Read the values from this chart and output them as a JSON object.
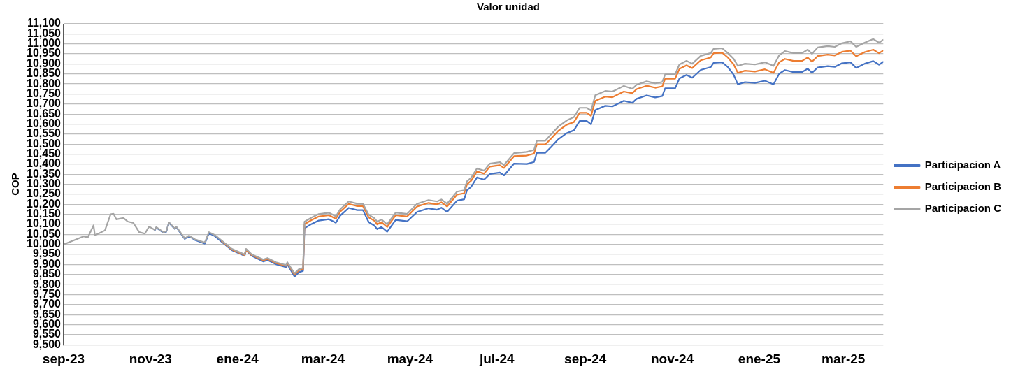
{
  "chart_data": {
    "type": "line",
    "title": "Valor unidad",
    "ylabel": "COP",
    "x": [
      "2023-09-01",
      "2023-09-15",
      "2023-09-18",
      "2023-09-22",
      "2023-09-23",
      "2023-09-30",
      "2023-10-04",
      "2023-10-06",
      "2023-10-08",
      "2023-10-13",
      "2023-10-16",
      "2023-10-20",
      "2023-10-24",
      "2023-10-28",
      "2023-10-31",
      "2023-11-04",
      "2023-11-05",
      "2023-11-10",
      "2023-11-12",
      "2023-11-14",
      "2023-11-18",
      "2023-11-19",
      "2023-11-25",
      "2023-11-28",
      "2023-12-02",
      "2023-12-09",
      "2023-12-12",
      "2023-12-16",
      "2023-12-21",
      "2023-12-28",
      "2024-01-06",
      "2024-01-07",
      "2024-01-11",
      "2024-01-19",
      "2024-01-22",
      "2024-01-28",
      "2024-02-04",
      "2024-02-05",
      "2024-02-10",
      "2024-02-13",
      "2024-02-16",
      "2024-02-17",
      "2024-02-22",
      "2024-02-27",
      "2024-03-05",
      "2024-03-10",
      "2024-03-13",
      "2024-03-19",
      "2024-03-25",
      "2024-03-29",
      "2024-04-02",
      "2024-04-06",
      "2024-04-08",
      "2024-04-11",
      "2024-04-15",
      "2024-04-21",
      "2024-04-29",
      "2024-05-06",
      "2024-05-14",
      "2024-05-20",
      "2024-05-23",
      "2024-05-27",
      "2024-06-03",
      "2024-06-08",
      "2024-06-10",
      "2024-06-13",
      "2024-06-17",
      "2024-06-22",
      "2024-06-26",
      "2024-07-03",
      "2024-07-06",
      "2024-07-13",
      "2024-07-22",
      "2024-07-27",
      "2024-07-29",
      "2024-08-04",
      "2024-08-08",
      "2024-08-13",
      "2024-08-19",
      "2024-08-24",
      "2024-08-28",
      "2024-09-02",
      "2024-09-05",
      "2024-09-08",
      "2024-09-15",
      "2024-09-20",
      "2024-09-28",
      "2024-10-04",
      "2024-10-07",
      "2024-10-14",
      "2024-10-20",
      "2024-10-25",
      "2024-10-27",
      "2024-11-03",
      "2024-11-06",
      "2024-11-11",
      "2024-11-15",
      "2024-11-21",
      "2024-11-28",
      "2024-11-30",
      "2024-12-06",
      "2024-12-10",
      "2024-12-14",
      "2024-12-17",
      "2024-12-22",
      "2024-12-29",
      "2025-01-05",
      "2025-01-11",
      "2025-01-15",
      "2025-01-19",
      "2025-01-25",
      "2025-01-31",
      "2025-02-04",
      "2025-02-07",
      "2025-02-11",
      "2025-02-18",
      "2025-02-23",
      "2025-02-28",
      "2025-03-06",
      "2025-03-10",
      "2025-03-16",
      "2025-03-22",
      "2025-03-26",
      "2025-03-29"
    ],
    "series": [
      {
        "name": "Participacion A",
        "color": "#4472c4",
        "values": [
          null,
          null,
          null,
          null,
          null,
          null,
          null,
          null,
          null,
          null,
          null,
          null,
          null,
          null,
          null,
          10070,
          10084,
          10059,
          10063,
          10108,
          10077,
          10087,
          10027,
          10041,
          10023,
          10004,
          10056,
          10042,
          10012,
          9971,
          9943,
          9971,
          9943,
          9915,
          9922,
          9901,
          9887,
          9901,
          9840,
          9861,
          9868,
          10081,
          10102,
          10119,
          10126,
          10108,
          10143,
          10182,
          10171,
          10171,
          10111,
          10094,
          10076,
          10087,
          10063,
          10122,
          10115,
          10162,
          10180,
          10173,
          10183,
          10162,
          10218,
          10225,
          10270,
          10288,
          10334,
          10323,
          10351,
          10358,
          10344,
          10403,
          10401,
          10411,
          10457,
          10457,
          10486,
          10524,
          10555,
          10569,
          10615,
          10615,
          10599,
          10670,
          10691,
          10688,
          10716,
          10706,
          10726,
          10743,
          10733,
          10740,
          10778,
          10778,
          10827,
          10845,
          10831,
          10870,
          10884,
          10905,
          10908,
          10884,
          10846,
          10798,
          10809,
          10805,
          10816,
          10798,
          10851,
          10869,
          10859,
          10859,
          10876,
          10855,
          10882,
          10889,
          10885,
          10903,
          10908,
          10880,
          10901,
          10914,
          10896,
          10910
        ]
      },
      {
        "name": "Participacion B",
        "color": "#ed7d31",
        "values": [
          null,
          null,
          null,
          null,
          null,
          null,
          null,
          null,
          null,
          null,
          null,
          null,
          null,
          null,
          null,
          null,
          null,
          null,
          null,
          null,
          null,
          null,
          null,
          null,
          null,
          null,
          null,
          null,
          10016,
          9975,
          9947,
          9975,
          9947,
          9921,
          9928,
          9907,
          9893,
          9907,
          9849,
          9870,
          9877,
          10101,
          10122,
          10139,
          10146,
          10128,
          10163,
          10202,
          10191,
          10191,
          10135,
          10118,
          10100,
          10111,
          10087,
          10146,
          10139,
          10189,
          10207,
          10200,
          10210,
          10189,
          10248,
          10255,
          10300,
          10318,
          10364,
          10353,
          10388,
          10395,
          10381,
          10440,
          10443,
          10453,
          10499,
          10499,
          10528,
          10566,
          10597,
          10610,
          10656,
          10656,
          10641,
          10716,
          10737,
          10734,
          10762,
          10754,
          10774,
          10791,
          10781,
          10788,
          10826,
          10826,
          10875,
          10893,
          10879,
          10918,
          10932,
          10953,
          10956,
          10932,
          10898,
          10855,
          10866,
          10862,
          10873,
          10855,
          10908,
          10925,
          10915,
          10915,
          10932,
          10911,
          10939,
          10946,
          10942,
          10960,
          10966,
          10938,
          10959,
          10971,
          10953,
          10967
        ]
      },
      {
        "name": "Participacion C",
        "color": "#a5a5a5",
        "values": [
          10000,
          10040,
          10035,
          10095,
          10045,
          10070,
          10150,
          10153,
          10125,
          10132,
          10114,
          10107,
          10061,
          10054,
          10089,
          10072,
          10086,
          10061,
          10065,
          10110,
          10079,
          10089,
          10030,
          10044,
          10026,
          10009,
          10061,
          10047,
          10019,
          9978,
          9950,
          9978,
          9950,
          9925,
          9932,
          9911,
          9897,
          9911,
          9855,
          9876,
          9883,
          10113,
          10134,
          10151,
          10158,
          10140,
          10175,
          10214,
          10203,
          10203,
          10148,
          10131,
          10113,
          10124,
          10100,
          10159,
          10152,
          10203,
          10221,
          10214,
          10224,
          10203,
          10263,
          10270,
          10315,
          10333,
          10379,
          10368,
          10403,
          10410,
          10396,
          10455,
          10461,
          10471,
          10517,
          10517,
          10549,
          10587,
          10618,
          10635,
          10681,
          10681,
          10667,
          10744,
          10765,
          10762,
          10790,
          10776,
          10796,
          10813,
          10803,
          10810,
          10848,
          10848,
          10897,
          10915,
          10901,
          10940,
          10954,
          10975,
          10978,
          10954,
          10926,
          10890,
          10901,
          10897,
          10908,
          10890,
          10943,
          10964,
          10954,
          10954,
          10971,
          10950,
          10982,
          10989,
          10985,
          11003,
          11013,
          10985,
          11006,
          11024,
          11006,
          11020
        ]
      }
    ],
    "xlim": [
      "2023-09-01",
      "2025-03-29"
    ],
    "xticks": [
      {
        "value": "2023-09-01",
        "label": "sep-23"
      },
      {
        "value": "2023-11-01",
        "label": "nov-23"
      },
      {
        "value": "2024-01-01",
        "label": "ene-24"
      },
      {
        "value": "2024-03-01",
        "label": "mar-24"
      },
      {
        "value": "2024-05-01",
        "label": "may-24"
      },
      {
        "value": "2024-07-01",
        "label": "jul-24"
      },
      {
        "value": "2024-09-01",
        "label": "sep-24"
      },
      {
        "value": "2024-11-01",
        "label": "nov-24"
      },
      {
        "value": "2025-01-01",
        "label": "ene-25"
      },
      {
        "value": "2025-03-01",
        "label": "mar-25"
      }
    ],
    "ylim": [
      9500,
      11100
    ],
    "yticks": [
      {
        "value": 9500,
        "label": "9,500"
      },
      {
        "value": 9550,
        "label": "9,550"
      },
      {
        "value": 9600,
        "label": "9,600"
      },
      {
        "value": 9650,
        "label": "9,650"
      },
      {
        "value": 9700,
        "label": "9,700"
      },
      {
        "value": 9750,
        "label": "9,750"
      },
      {
        "value": 9800,
        "label": "9,800"
      },
      {
        "value": 9850,
        "label": "9,850"
      },
      {
        "value": 9900,
        "label": "9,900"
      },
      {
        "value": 9950,
        "label": "9,950"
      },
      {
        "value": 10000,
        "label": "10,000"
      },
      {
        "value": 10050,
        "label": "10,050"
      },
      {
        "value": 10100,
        "label": "10,100"
      },
      {
        "value": 10150,
        "label": "10,150"
      },
      {
        "value": 10200,
        "label": "10,200"
      },
      {
        "value": 10250,
        "label": "10,250"
      },
      {
        "value": 10300,
        "label": "10,300"
      },
      {
        "value": 10350,
        "label": "10,350"
      },
      {
        "value": 10400,
        "label": "10,400"
      },
      {
        "value": 10450,
        "label": "10,450"
      },
      {
        "value": 10500,
        "label": "10,500"
      },
      {
        "value": 10550,
        "label": "10,550"
      },
      {
        "value": 10600,
        "label": "10,600"
      },
      {
        "value": 10650,
        "label": "10,650"
      },
      {
        "value": 10700,
        "label": "10,700"
      },
      {
        "value": 10750,
        "label": "10,750"
      },
      {
        "value": 10800,
        "label": "10,800"
      },
      {
        "value": 10850,
        "label": "10,850"
      },
      {
        "value": 10900,
        "label": "10,900"
      },
      {
        "value": 10950,
        "label": "10,950"
      },
      {
        "value": 11000,
        "label": "11,000"
      },
      {
        "value": 11050,
        "label": "11,050"
      },
      {
        "value": 11100,
        "label": "11,100"
      }
    ],
    "grid": "y",
    "legend": "right"
  }
}
